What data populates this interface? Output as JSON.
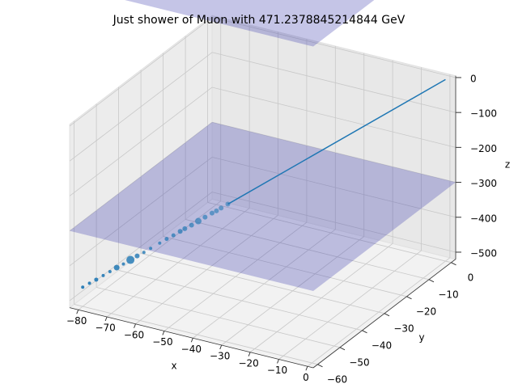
{
  "chart_data": {
    "type": "scatter3d",
    "title": "Just shower of Muon with 471.2378845214844 GeV",
    "xlabel": "x",
    "ylabel": "y",
    "zlabel": "z",
    "xlim": [
      -83,
      2
    ],
    "ylim": [
      -62,
      2
    ],
    "zlim": [
      -520,
      5
    ],
    "xticks": [
      {
        "value": -80,
        "label": "−80"
      },
      {
        "value": -70,
        "label": "−70"
      },
      {
        "value": -60,
        "label": "−60"
      },
      {
        "value": -50,
        "label": "−50"
      },
      {
        "value": -40,
        "label": "−40"
      },
      {
        "value": -30,
        "label": "−30"
      },
      {
        "value": -20,
        "label": "−20"
      },
      {
        "value": -10,
        "label": "−10"
      },
      0
    ],
    "yticks": [
      0,
      {
        "value": -10,
        "label": "−10"
      },
      {
        "value": -20,
        "label": "−20"
      },
      {
        "value": -30,
        "label": "−30"
      },
      {
        "value": -40,
        "label": "−40"
      },
      {
        "value": -50,
        "label": "−50"
      },
      {
        "value": -60,
        "label": "−60"
      }
    ],
    "zticks": [
      0,
      {
        "value": -100,
        "label": "−100"
      },
      {
        "value": -200,
        "label": "−200"
      },
      {
        "value": -300,
        "label": "−300"
      },
      {
        "value": -400,
        "label": "−400"
      },
      {
        "value": -500,
        "label": "−500"
      }
    ],
    "grid": true,
    "planes": {
      "color": "#4040b0",
      "z": [
        -300,
        400
      ]
    },
    "series": [
      {
        "type": "line",
        "color": "#1f77b4",
        "x": [
          0,
          -48
        ],
        "y": [
          0,
          -36
        ],
        "z": [
          0,
          -279
        ]
      },
      {
        "type": "scatter",
        "color": "#1f77b4",
        "x": [
          -48,
          -49.5,
          -50.5,
          -51.5,
          -53,
          -54.5,
          -56,
          -57.5,
          -58.5,
          -60,
          -61.5,
          -63,
          -65,
          -66.5,
          -68,
          -69.5,
          -71,
          -72.5,
          -74,
          -75.5,
          -77,
          -78.5,
          -80
        ],
        "y": [
          -36,
          -37.1,
          -37.9,
          -38.6,
          -39.8,
          -40.9,
          -42,
          -43.1,
          -43.9,
          -45,
          -46.1,
          -47.3,
          -48.8,
          -49.9,
          -51,
          -52.1,
          -53.3,
          -54.4,
          -55.5,
          -56.6,
          -57.8,
          -58.9,
          -60
        ],
        "z": [
          -279,
          -288,
          -294,
          -299,
          -308,
          -317,
          -326,
          -334,
          -340,
          -349,
          -357,
          -366,
          -378,
          -387,
          -395,
          -404,
          -413,
          -421,
          -430,
          -439,
          -448,
          -456,
          -465
        ],
        "sizes": [
          3,
          3,
          3,
          3,
          3,
          4,
          3,
          3,
          3,
          2.5,
          2.5,
          2,
          2,
          2,
          3,
          5,
          2,
          3.5,
          2,
          2,
          2.5,
          2,
          2
        ]
      }
    ]
  }
}
